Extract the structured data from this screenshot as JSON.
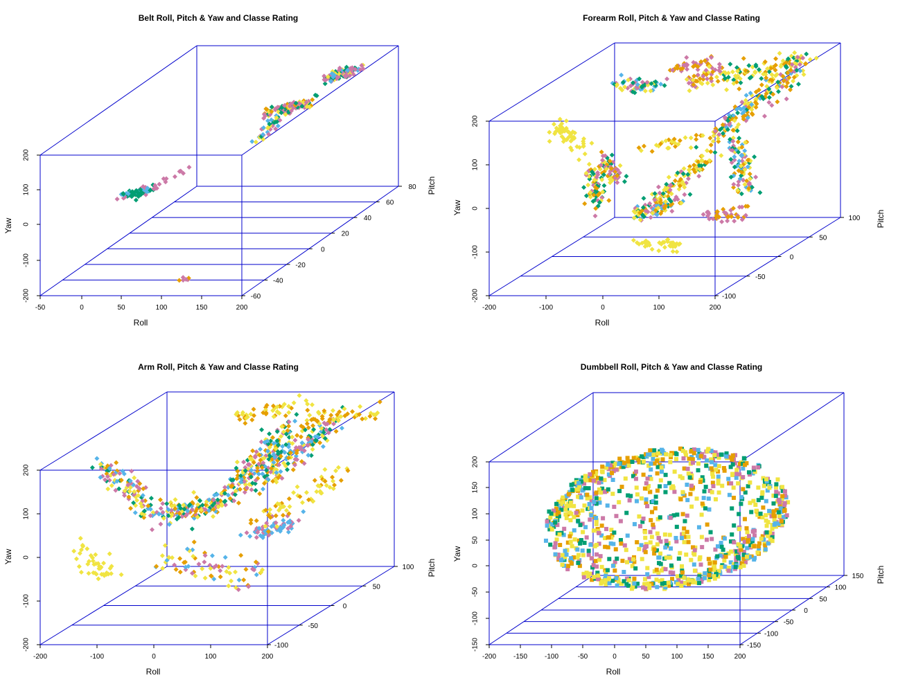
{
  "colors": {
    "box": "#0000cc",
    "grid": "#0000cc",
    "classes": [
      "#cc79a7",
      "#009e73",
      "#e69f00",
      "#56b4e9",
      "#f0e442"
    ]
  },
  "chart_data": [
    {
      "type": "scatter3d",
      "title": "Belt Roll, Pitch & Yaw and Classe Rating",
      "xlabel": "Roll",
      "ylabel": "Pitch",
      "zlabel": "Yaw",
      "xlim": [
        -50,
        200
      ],
      "ylim": [
        -60,
        80
      ],
      "zlim": [
        -200,
        200
      ],
      "xticks": [
        "-50",
        "0",
        "50",
        "100",
        "150",
        "200"
      ],
      "yticks": [
        "-60",
        "-40",
        "-20",
        "0",
        "20",
        "40",
        "60",
        "80"
      ],
      "zticks": [
        "-200",
        "-100",
        "0",
        "100",
        "200"
      ],
      "marker": "diamond",
      "clusters": [
        {
          "x": [
            0,
            30
          ],
          "y": [
            -20,
            -20
          ],
          "z": [
            0,
            10
          ],
          "n": 70,
          "spread": [
            4,
            3,
            4
          ],
          "colors": [
            1,
            1,
            1,
            0,
            3
          ]
        },
        {
          "x": [
            30,
            60
          ],
          "y": [
            -20,
            -15
          ],
          "z": [
            10,
            50
          ],
          "n": 14,
          "spread": [
            3,
            3,
            3
          ],
          "colors": [
            0
          ]
        },
        {
          "x": [
            120,
            128
          ],
          "y": [
            -58,
            -58
          ],
          "z": [
            -160,
            -158
          ],
          "n": 6,
          "spread": [
            3,
            1,
            2
          ],
          "colors": [
            2,
            0
          ]
        },
        {
          "x": [
            120,
            160
          ],
          "y": [
            20,
            28
          ],
          "z": [
            145,
            150
          ],
          "n": 110,
          "spread": [
            4,
            3,
            4
          ],
          "colors": [
            0,
            0,
            0,
            2,
            4,
            1
          ]
        },
        {
          "x": [
            130,
            145
          ],
          "y": [
            5,
            15
          ],
          "z": [
            100,
            150
          ],
          "n": 40,
          "spread": [
            3,
            3,
            5
          ],
          "colors": [
            0,
            4,
            1,
            3
          ]
        },
        {
          "x": [
            138,
            160
          ],
          "y": [
            60,
            70
          ],
          "z": [
            150,
            155
          ],
          "n": 100,
          "spread": [
            4,
            3,
            6
          ],
          "colors": [
            0,
            0,
            0,
            4,
            3,
            1
          ]
        }
      ]
    },
    {
      "type": "scatter3d",
      "title": "Forearm Roll, Pitch & Yaw and Classe Rating",
      "xlabel": "Roll",
      "ylabel": "Pitch",
      "zlabel": "Yaw",
      "xlim": [
        -200,
        200
      ],
      "ylim": [
        -100,
        100
      ],
      "zlim": [
        -200,
        200
      ],
      "xticks": [
        "-200",
        "-100",
        "0",
        "100",
        "200"
      ],
      "yticks": [
        "-100",
        "-50",
        "0",
        "50",
        "100"
      ],
      "zticks": [
        "-200",
        "-100",
        "0",
        "100",
        "200"
      ],
      "marker": "diamond",
      "clusters": [
        {
          "x": [
            -150,
            -95
          ],
          "y": [
            -40,
            -40
          ],
          "z": [
            140,
            80
          ],
          "n": 50,
          "spread": [
            5,
            5,
            8
          ],
          "colors": [
            4
          ]
        },
        {
          "x": [
            -110,
            -95
          ],
          "y": [
            -20,
            -20
          ],
          "z": [
            20,
            -60
          ],
          "n": 70,
          "spread": [
            6,
            5,
            10
          ],
          "colors": [
            1,
            1,
            0,
            2,
            4
          ]
        },
        {
          "x": [
            -100,
            -80
          ],
          "y": [
            -10,
            0
          ],
          "z": [
            30,
            -30
          ],
          "n": 60,
          "spread": [
            6,
            5,
            10
          ],
          "colors": [
            2,
            0,
            4,
            1
          ]
        },
        {
          "x": [
            -150,
            -100
          ],
          "y": [
            60,
            80
          ],
          "z": [
            140,
            120
          ],
          "n": 60,
          "spread": [
            5,
            5,
            8
          ],
          "colors": [
            1,
            3,
            0,
            4
          ]
        },
        {
          "x": [
            -70,
            -10
          ],
          "y": [
            75,
            85
          ],
          "z": [
            160,
            175
          ],
          "n": 40,
          "spread": [
            5,
            3,
            6
          ],
          "colors": [
            0,
            0,
            2
          ]
        },
        {
          "x": [
            -40,
            10
          ],
          "y": [
            70,
            80
          ],
          "z": [
            130,
            160
          ],
          "n": 45,
          "spread": [
            6,
            3,
            8
          ],
          "colors": [
            2,
            4,
            0
          ]
        },
        {
          "x": [
            -20,
            50
          ],
          "y": [
            -30,
            -30
          ],
          "z": [
            -80,
            -50
          ],
          "n": 90,
          "spread": [
            8,
            6,
            10
          ],
          "colors": [
            0,
            1,
            3,
            2,
            4
          ]
        },
        {
          "x": [
            10,
            70
          ],
          "y": [
            -20,
            10
          ],
          "z": [
            -50,
            30
          ],
          "n": 100,
          "spread": [
            8,
            6,
            10
          ],
          "colors": [
            2,
            4,
            4,
            1,
            0
          ]
        },
        {
          "x": [
            -20,
            60
          ],
          "y": [
            -30,
            -30
          ],
          "z": [
            -140,
            -150
          ],
          "n": 40,
          "spread": [
            8,
            3,
            5
          ],
          "colors": [
            4
          ]
        },
        {
          "x": [
            -60,
            100
          ],
          "y": [
            10,
            30
          ],
          "z": [
            40,
            60
          ],
          "n": 40,
          "spread": [
            8,
            5,
            8
          ],
          "colors": [
            2,
            4
          ]
        },
        {
          "x": [
            20,
            160
          ],
          "y": [
            60,
            80
          ],
          "z": [
            150,
            180
          ],
          "n": 100,
          "spread": [
            10,
            6,
            12
          ],
          "colors": [
            4,
            4,
            2,
            1
          ]
        },
        {
          "x": [
            80,
            160
          ],
          "y": [
            20,
            70
          ],
          "z": [
            80,
            170
          ],
          "n": 150,
          "spread": [
            10,
            8,
            12
          ],
          "colors": [
            2,
            2,
            1,
            3,
            0,
            4
          ]
        },
        {
          "x": [
            130,
            150
          ],
          "y": [
            -10,
            0
          ],
          "z": [
            80,
            -60
          ],
          "n": 90,
          "spread": [
            8,
            6,
            10
          ],
          "colors": [
            2,
            1,
            3,
            0,
            4
          ]
        },
        {
          "x": [
            130,
            170
          ],
          "y": [
            -40,
            -30
          ],
          "z": [
            -70,
            -70
          ],
          "n": 40,
          "spread": [
            8,
            6,
            8
          ],
          "colors": [
            0,
            2
          ]
        }
      ]
    },
    {
      "type": "scatter3d",
      "title": "Arm Roll, Pitch & Yaw and Classe Rating",
      "xlabel": "Roll",
      "ylabel": "Pitch",
      "zlabel": "Yaw",
      "xlim": [
        -200,
        200
      ],
      "ylim": [
        -100,
        100
      ],
      "zlim": [
        -200,
        200
      ],
      "xticks": [
        "-200",
        "-100",
        "0",
        "100",
        "200"
      ],
      "yticks": [
        "-100",
        "-50",
        "0",
        "50",
        "100"
      ],
      "zticks": [
        "-200",
        "-100",
        "0",
        "100",
        "200"
      ],
      "marker": "diamond",
      "clusters": [
        {
          "x": [
            -180,
            -80
          ],
          "y": [
            -20,
            -20
          ],
          "z": [
            140,
            20
          ],
          "n": 110,
          "spread": [
            10,
            8,
            12
          ],
          "colors": [
            0,
            2,
            1,
            3,
            4
          ]
        },
        {
          "x": [
            -80,
            0
          ],
          "y": [
            -10,
            10
          ],
          "z": [
            20,
            30
          ],
          "n": 130,
          "spread": [
            10,
            8,
            12
          ],
          "colors": [
            2,
            0,
            1,
            4,
            3
          ]
        },
        {
          "x": [
            0,
            80
          ],
          "y": [
            20,
            40
          ],
          "z": [
            40,
            170
          ],
          "n": 180,
          "spread": [
            12,
            10,
            14
          ],
          "colors": [
            1,
            3,
            0,
            2,
            4
          ]
        },
        {
          "x": [
            50,
            150
          ],
          "y": [
            30,
            50
          ],
          "z": [
            60,
            180
          ],
          "n": 140,
          "spread": [
            12,
            10,
            14
          ],
          "colors": [
            2,
            4,
            0,
            1,
            3
          ]
        },
        {
          "x": [
            -180,
            -120
          ],
          "y": [
            -60,
            -60
          ],
          "z": [
            -20,
            -80
          ],
          "n": 40,
          "spread": [
            8,
            6,
            10
          ],
          "colors": [
            4
          ]
        },
        {
          "x": [
            -60,
            100
          ],
          "y": [
            -30,
            -20
          ],
          "z": [
            -60,
            -120
          ],
          "n": 70,
          "spread": [
            15,
            10,
            14
          ],
          "colors": [
            0,
            2,
            4,
            3
          ]
        },
        {
          "x": [
            -60,
            60
          ],
          "y": [
            80,
            90
          ],
          "z": [
            160,
            180
          ],
          "n": 45,
          "spread": [
            12,
            5,
            8
          ],
          "colors": [
            4,
            2
          ]
        },
        {
          "x": [
            60,
            170
          ],
          "y": [
            80,
            90
          ],
          "z": [
            150,
            160
          ],
          "n": 45,
          "spread": [
            12,
            5,
            8
          ],
          "colors": [
            4,
            2
          ]
        },
        {
          "x": [
            80,
            130
          ],
          "y": [
            -20,
            0
          ],
          "z": [
            -20,
            -10
          ],
          "n": 60,
          "spread": [
            8,
            6,
            8
          ],
          "colors": [
            0,
            3
          ]
        },
        {
          "x": [
            80,
            170
          ],
          "y": [
            0,
            40
          ],
          "z": [
            0,
            60
          ],
          "n": 60,
          "spread": [
            10,
            8,
            12
          ],
          "colors": [
            4,
            2
          ]
        }
      ]
    },
    {
      "type": "scatter3d",
      "title": "Dumbbell Roll, Pitch & Yaw and Classe Rating",
      "xlabel": "Roll",
      "ylabel": "Pitch",
      "zlabel": "Yaw",
      "xlim": [
        -200,
        200
      ],
      "ylim": [
        -150,
        150
      ],
      "zlim": [
        -150,
        200
      ],
      "xticks": [
        "-200",
        "-150",
        "-100",
        "-50",
        "0",
        "50",
        "100",
        "150",
        "200"
      ],
      "yticks": [
        "-150",
        "-100",
        "-50",
        "0",
        "50",
        "100",
        "150"
      ],
      "zticks": [
        "-150",
        "-100",
        "-50",
        "0",
        "50",
        "100",
        "150",
        "200"
      ],
      "marker": "square",
      "ring": {
        "n": 1400,
        "colors": [
          4,
          4,
          2,
          0,
          1,
          3
        ]
      },
      "interior": {
        "n": 120,
        "colors": [
          4,
          0,
          1,
          3,
          2
        ]
      }
    }
  ]
}
